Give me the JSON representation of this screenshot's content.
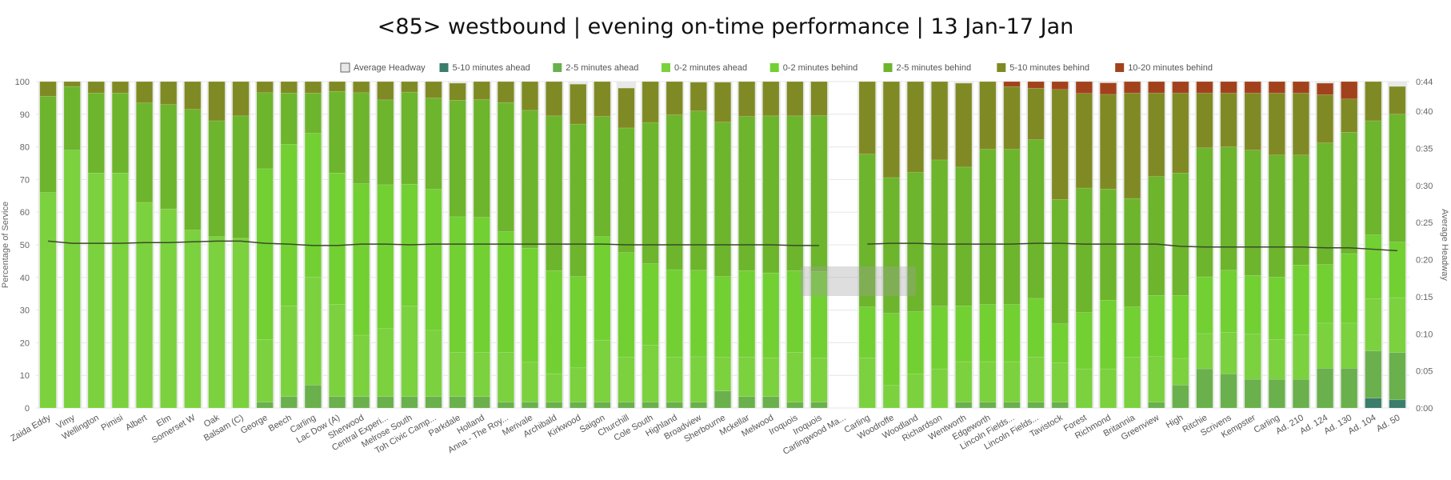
{
  "title": "<85> westbound | evening on-time performance | 13 Jan-17 Jan",
  "chart_data": {
    "type": "bar",
    "stacked": true,
    "title": "<85> westbound | evening on-time performance | 13 Jan-17 Jan",
    "ylabel": "Percentage of Service",
    "y2label": "Average Headway",
    "ylim": [
      0,
      100
    ],
    "y2lim": [
      0,
      0.44
    ],
    "yticks": [
      "0",
      "10",
      "20",
      "30",
      "40",
      "50",
      "60",
      "70",
      "80",
      "90",
      "100"
    ],
    "y2ticks": [
      "0:00",
      "0:05",
      "0:10",
      "0:15",
      "0:20",
      "0:25",
      "0:30",
      "0:35",
      "0:40",
      "0:44"
    ],
    "legend_position": "top-center",
    "colors": {
      "average_headway": "#e8e8e8",
      "5_10_ahead": "#3a7d6c",
      "2_5_ahead": "#6ab04c",
      "0_2_ahead": "#7bd13e",
      "0_2_behind": "#72d032",
      "2_5_behind": "#6db52c",
      "5_10_behind": "#808a24",
      "10_20_behind": "#a2421c",
      "headway_line": "#3a4a2a"
    },
    "categories": [
      "Zaida Eddy",
      "Vimy",
      "Wellington",
      "Pimisi",
      "Albert",
      "Elm",
      "Somerset W",
      "Oak",
      "Balsam (C)",
      "George",
      "Beech",
      "Carling",
      "Lac Dow (A)",
      "Sherwood",
      "Central Experi...",
      "Melrose South",
      "Toh Civic Camp...",
      "Parkdale",
      "Holland",
      "Anna - The Roy...",
      "Merivale",
      "Archibald",
      "Kirkwood",
      "Saigon",
      "Churchill",
      "Cole South",
      "Highland",
      "Broadview",
      "Sherbourne",
      "Mckellar",
      "Melwood",
      "Iroquois",
      "Iroquois",
      "Carlingwood Ma...",
      "Carling",
      "Woodroffe",
      "Woodland",
      "Richardson",
      "Wentworth",
      "Edgeworth",
      "Lincoln Fields...",
      "Lincoln Fields...",
      "Tavistock",
      "Forest",
      "Richmond",
      "Britannia",
      "Greenview",
      "High",
      "Ritchie",
      "Scrivens",
      "Kempster",
      "Carling",
      "Ad. 210",
      "Ad. 124",
      "Ad. 130",
      "Ad. 104",
      "Ad. 50"
    ],
    "series": [
      {
        "name": "5-10 minutes ahead",
        "key": "5_10_ahead",
        "values": [
          0,
          0,
          0,
          0,
          0,
          0,
          0,
          0,
          0,
          0,
          0,
          0,
          0,
          0,
          0,
          0,
          0,
          0,
          0,
          0,
          0,
          0,
          0,
          0,
          0,
          0,
          0,
          0,
          0,
          0,
          0,
          0,
          0,
          0,
          0,
          0,
          0,
          0,
          0,
          0,
          0,
          0,
          0,
          0,
          0,
          0,
          0,
          0,
          0,
          0,
          0,
          0,
          0,
          0,
          0,
          3,
          2.5
        ]
      },
      {
        "name": "2-5 minutes ahead",
        "key": "2_5_ahead",
        "values": [
          0,
          0,
          0,
          0,
          0,
          0,
          0,
          0,
          0,
          1.8,
          3.5,
          7,
          3.5,
          3.5,
          3.5,
          3.5,
          3.5,
          3.5,
          3.5,
          1.8,
          1.8,
          1.8,
          1.8,
          1.8,
          1.8,
          1.8,
          1.8,
          1.8,
          5.2,
          3.5,
          3.5,
          1.8,
          1.8,
          0,
          0,
          0,
          0,
          0,
          1.8,
          1.8,
          1.8,
          1.8,
          1.8,
          0,
          0,
          0,
          1.8,
          7,
          12,
          10.5,
          8.8,
          8.8,
          8.8,
          12.2,
          12.2,
          14.5,
          14.5
        ]
      },
      {
        "name": "0-2 minutes ahead",
        "key": "0_2_ahead",
        "values": [
          66,
          79,
          72,
          72,
          63,
          61,
          54.5,
          52.5,
          52,
          19.2,
          27.8,
          33,
          28.2,
          18.8,
          20.8,
          27.7,
          20.3,
          13.5,
          13.5,
          15.2,
          12.2,
          8.7,
          10.5,
          19,
          13.8,
          17.4,
          13.8,
          13.9,
          10.3,
          12.1,
          11.9,
          15.3,
          13.5,
          0,
          15.4,
          6.9,
          10.4,
          12,
          12.4,
          12.4,
          12.4,
          13.8,
          12,
          12,
          12,
          15.5,
          14,
          8.2,
          10.8,
          12.7,
          13.8,
          12.2,
          13.7,
          13.8,
          13.8,
          16,
          16.8
        ]
      },
      {
        "name": "0-2 minutes behind",
        "key": "0_2_behind",
        "values": [
          0,
          0,
          0,
          0,
          0,
          0,
          0,
          0,
          0,
          52.3,
          49.5,
          44.2,
          40.3,
          46.4,
          44.1,
          37.4,
          43.2,
          41.6,
          41.4,
          37,
          35,
          31.6,
          28,
          31.7,
          32,
          25,
          26.8,
          26.5,
          24.8,
          26.5,
          26,
          25,
          26.5,
          0,
          15.6,
          22.1,
          19.1,
          19.2,
          17.1,
          17.5,
          17.5,
          18,
          12,
          17.3,
          21,
          15.5,
          18.7,
          19.3,
          17.4,
          19,
          18,
          19.1,
          21.3,
          18,
          21.3,
          19.5,
          17
        ]
      },
      {
        "name": "2-5 minutes behind",
        "key": "2_5_behind",
        "values": [
          29.5,
          19.5,
          24.5,
          24.5,
          30.5,
          32,
          37,
          35.5,
          37.5,
          23.3,
          15.7,
          12.3,
          25,
          27.9,
          26,
          28.2,
          28,
          35.7,
          36.1,
          39.6,
          42.2,
          47.4,
          46.7,
          36.8,
          38.2,
          43.3,
          47.4,
          48.8,
          47.3,
          47.2,
          48.1,
          47.4,
          47.8,
          0,
          46.8,
          41.6,
          42.7,
          44.8,
          42.5,
          47.6,
          47.6,
          48.6,
          38.1,
          38.1,
          34.1,
          33.2,
          36.4,
          37.5,
          39.5,
          37.8,
          38.4,
          37.4,
          33.7,
          37.2,
          37.2,
          35,
          39.2
        ]
      },
      {
        "name": "5-10 minutes behind",
        "key": "5_10_behind",
        "values": [
          4.5,
          1.5,
          3.5,
          3.5,
          6.5,
          7,
          8.5,
          12,
          10.5,
          3.4,
          3.5,
          3.5,
          3,
          3.4,
          5.6,
          3.2,
          5,
          5.2,
          5.5,
          6.4,
          8.8,
          10.5,
          12.2,
          10.7,
          12.2,
          12.5,
          10.2,
          8.8,
          12.2,
          10.7,
          10.5,
          10.5,
          10.4,
          0,
          22.2,
          29.4,
          27.8,
          24,
          25.7,
          20.7,
          19.2,
          15.8,
          33.7,
          29,
          29,
          32.3,
          25.6,
          24.5,
          16.8,
          16.5,
          17.5,
          19,
          19,
          14.8,
          10.2,
          12.3,
          8.5
        ]
      },
      {
        "name": "10-20 minutes behind",
        "key": "10_20_behind",
        "values": [
          0,
          0,
          0,
          0,
          0,
          0,
          0,
          0,
          0,
          0,
          0,
          0,
          0,
          0,
          0,
          0,
          0,
          0,
          0,
          0,
          0,
          0,
          0,
          0,
          0,
          0,
          0,
          0,
          0,
          0,
          0,
          0,
          0,
          0,
          0,
          0,
          0,
          0,
          0,
          0,
          1.5,
          2,
          3,
          3.6,
          3.5,
          3.5,
          3.5,
          3.5,
          3.5,
          3.5,
          3.5,
          3.5,
          3.5,
          3.5,
          5.3,
          1.7,
          0
        ]
      }
    ],
    "average_headway": [
      0.225,
      0.222,
      0.222,
      0.222,
      0.223,
      0.223,
      0.224,
      0.225,
      0.225,
      0.222,
      0.221,
      0.219,
      0.219,
      0.221,
      0.221,
      0.22,
      0.221,
      0.221,
      0.221,
      0.221,
      0.221,
      0.221,
      0.221,
      0.221,
      0.22,
      0.22,
      0.22,
      0.22,
      0.22,
      0.22,
      0.22,
      0.219,
      0.219,
      null,
      0.221,
      0.222,
      0.222,
      0.221,
      0.221,
      0.221,
      0.221,
      0.222,
      0.222,
      0.221,
      0.221,
      0.221,
      0.221,
      0.218,
      0.217,
      0.217,
      0.217,
      0.217,
      0.217,
      0.216,
      0.216,
      0.214,
      0.212
    ]
  }
}
